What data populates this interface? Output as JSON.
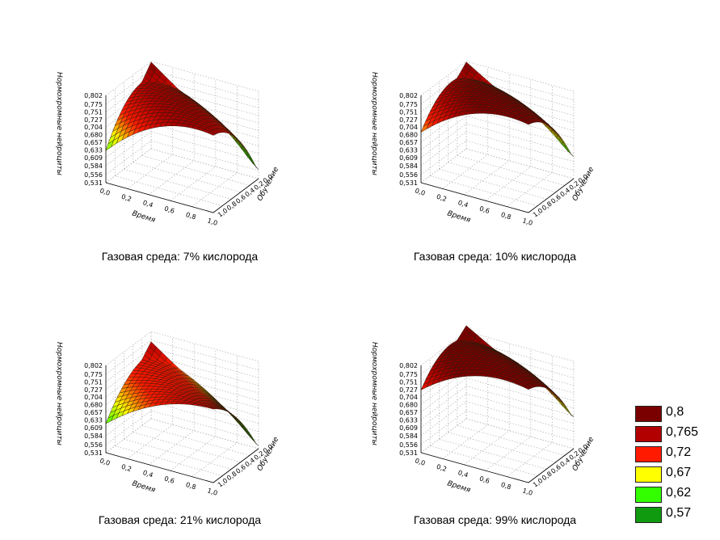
{
  "chart_data": [
    {
      "type": "surface3d",
      "title": "Газовая среда: 7% кислорода",
      "xlabel": "Время",
      "ylabel": "Обучение",
      "zlabel": "Нормохромные нейроциты",
      "x_ticks": [
        "0,0",
        "0,2",
        "0,4",
        "0,6",
        "0,8",
        "1,0"
      ],
      "y_ticks": [
        "0,0",
        "0,2",
        "0,4",
        "0,6",
        "0,8",
        "1,0"
      ],
      "z_ticks": [
        "0,802",
        "0,775",
        "0,751",
        "0,727",
        "0,704",
        "0,680",
        "0,657",
        "0,633",
        "0,609",
        "0,584",
        "0,556",
        "0,531"
      ],
      "corner_values": {
        "x0_y0": 0.6,
        "x1_y0": 0.7,
        "x0_y1": 0.8,
        "x1_y1": 0.56
      },
      "peak": {
        "x": 0.6,
        "y": 0.3,
        "z": 0.78
      }
    },
    {
      "type": "surface3d",
      "title": "Газовая среда: 10% кислорода",
      "xlabel": "Время",
      "ylabel": "Обучение",
      "zlabel": "Нормохромные нейроциты",
      "x_ticks": [
        "0,0",
        "0,2",
        "0,4",
        "0,6",
        "0,8",
        "1,0"
      ],
      "y_ticks": [
        "0,0",
        "0,2",
        "0,4",
        "0,6",
        "0,8",
        "1,0"
      ],
      "z_ticks": [
        "0,802",
        "0,775",
        "0,751",
        "0,727",
        "0,704",
        "0,680",
        "0,657",
        "0,633",
        "0,609",
        "0,584",
        "0,556",
        "0,531"
      ],
      "corner_values": {
        "x0_y0": 0.66,
        "x1_y0": 0.74,
        "x0_y1": 0.8,
        "x1_y1": 0.6
      },
      "peak": {
        "x": 0.6,
        "y": 0.3,
        "z": 0.81
      }
    },
    {
      "type": "surface3d",
      "title": "Газовая среда: 21% кислорода",
      "xlabel": "Время",
      "ylabel": "Обучение",
      "zlabel": "Нормохромные нейроциты",
      "x_ticks": [
        "0,0",
        "0,2",
        "0,4",
        "0,6",
        "0,8",
        "1,0"
      ],
      "y_ticks": [
        "0,0",
        "0,2",
        "0,4",
        "0,6",
        "0,8",
        "1,0"
      ],
      "z_ticks": [
        "0,802",
        "0,775",
        "0,751",
        "0,727",
        "0,704",
        "0,680",
        "0,657",
        "0,633",
        "0,609",
        "0,584",
        "0,556",
        "0,531"
      ],
      "corner_values": {
        "x0_y0": 0.6,
        "x1_y0": 0.71,
        "x0_y1": 0.77,
        "x1_y1": 0.54
      },
      "peak": {
        "x": 0.6,
        "y": 0.3,
        "z": 0.74
      }
    },
    {
      "type": "surface3d",
      "title": "Газовая среда: 99% кислорода",
      "xlabel": "Время",
      "ylabel": "Обучение",
      "zlabel": "Нормохромные нейроциты",
      "x_ticks": [
        "0,0",
        "0,2",
        "0,4",
        "0,6",
        "0,8",
        "1,0"
      ],
      "y_ticks": [
        "0,0",
        "0,2",
        "0,4",
        "0,6",
        "0,8",
        "1,0"
      ],
      "z_ticks": [
        "0,802",
        "0,775",
        "0,751",
        "0,727",
        "0,704",
        "0,680",
        "0,657",
        "0,633",
        "0,609",
        "0,584",
        "0,556",
        "0,531"
      ],
      "corner_values": {
        "x0_y0": 0.7,
        "x1_y0": 0.76,
        "x0_y1": 0.82,
        "x1_y1": 0.63
      },
      "peak": {
        "x": 0.6,
        "y": 0.3,
        "z": 0.83
      }
    }
  ],
  "legend": {
    "items": [
      {
        "label": "0,8",
        "color": "#7a0000"
      },
      {
        "label": "0,765",
        "color": "#b20000"
      },
      {
        "label": "0,72",
        "color": "#ff1a00"
      },
      {
        "label": "0,67",
        "color": "#ffff00"
      },
      {
        "label": "0,62",
        "color": "#33ff00"
      },
      {
        "label": "0,57",
        "color": "#109a10"
      }
    ]
  }
}
